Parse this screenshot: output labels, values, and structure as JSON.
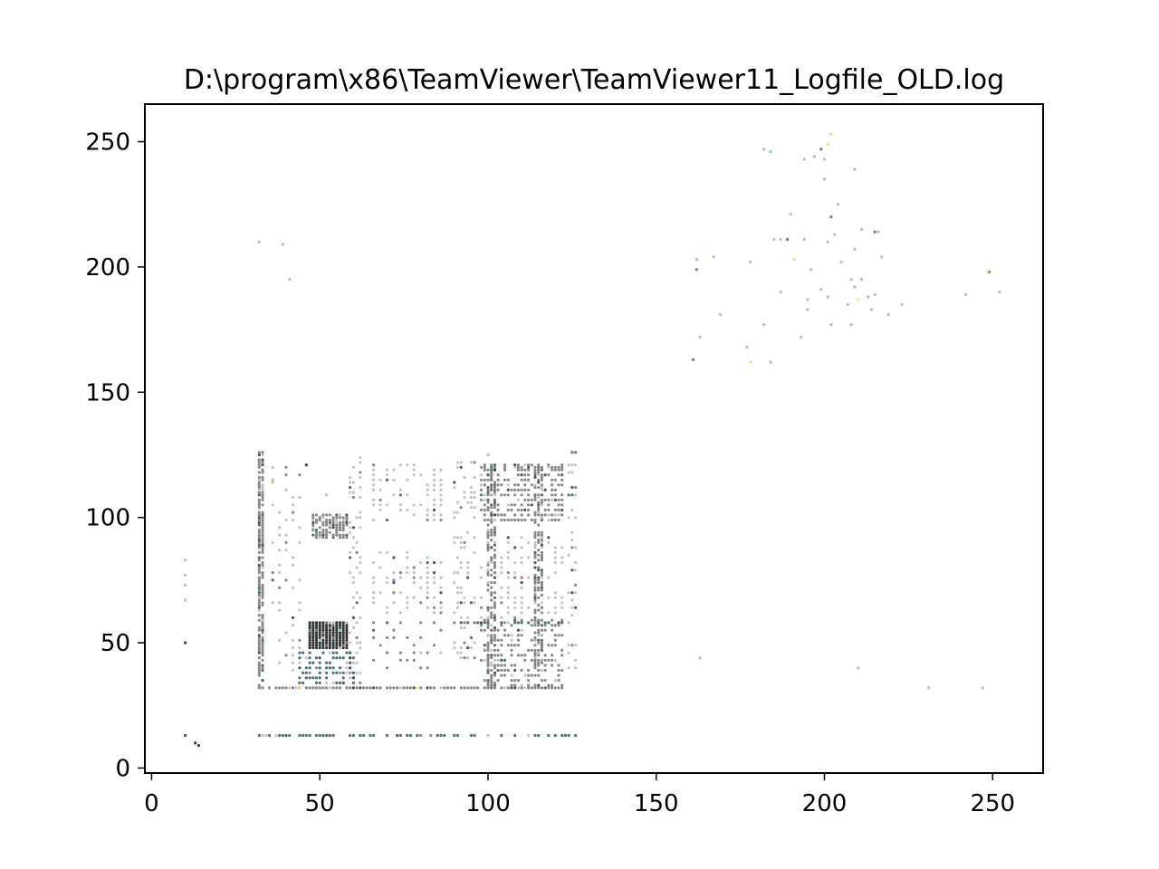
{
  "chart_data": {
    "type": "scatter",
    "title": "D:\\program\\x86\\TeamViewer\\TeamViewer11_Logfile_OLD.log",
    "xlabel": "",
    "ylabel": "",
    "xlim": [
      -2,
      265
    ],
    "ylim": [
      -2,
      265
    ],
    "xticks": [
      0,
      50,
      100,
      150,
      200,
      250
    ],
    "yticks": [
      0,
      50,
      100,
      150,
      200,
      250
    ],
    "grid": false,
    "legend": "none",
    "colors": {
      "dark": "#2b2b2b",
      "mid": "#6d6d6d",
      "light": "#b5b5b5",
      "teal": "#1f4f55",
      "accent_yellow": "#e8e26a",
      "accent_red": "#d9603c",
      "accent_blue": "#8fb7d8",
      "accent_purple": "#9a6aa8",
      "accent_green": "#a8c57a"
    },
    "clusters": [
      {
        "note": "dense block",
        "x": [
          47,
          58,
          1
        ],
        "y": [
          48,
          58,
          1
        ],
        "color": "dark",
        "density": 1.0
      },
      {
        "note": "row 32 low-left",
        "x": [
          32,
          122,
          1
        ],
        "y": [
          32,
          32,
          1
        ],
        "color": "mid",
        "density": 0.85
      },
      {
        "note": "row 13",
        "x": [
          32,
          126,
          1
        ],
        "y": [
          13,
          13,
          1
        ],
        "color": "teal",
        "density": 0.55
      },
      {
        "note": "col 32",
        "x": [
          32,
          33,
          1
        ],
        "y": [
          32,
          126,
          1
        ],
        "color": "mid",
        "density": 0.75
      },
      {
        "note": "block 48-56 x 92-101",
        "x": [
          48,
          58,
          1
        ],
        "y": [
          92,
          101,
          1
        ],
        "color": "mid",
        "density": 0.7
      },
      {
        "note": "block upper right 98-122",
        "x": [
          98,
          122,
          1
        ],
        "y": [
          99,
          121,
          2
        ],
        "color": "mid",
        "density": 0.6
      },
      {
        "note": "block 98-122 mid",
        "x": [
          98,
          122,
          2
        ],
        "y": [
          60,
          92,
          2
        ],
        "color": "light",
        "density": 0.45
      },
      {
        "note": "block 98-122 low",
        "x": [
          98,
          122,
          1
        ],
        "y": [
          33,
          60,
          2
        ],
        "color": "mid",
        "density": 0.45
      },
      {
        "note": "block 66-86 upper",
        "x": [
          66,
          86,
          2
        ],
        "y": [
          99,
          121,
          2
        ],
        "color": "light",
        "density": 0.5
      },
      {
        "note": "block 66-86 mid",
        "x": [
          66,
          86,
          2
        ],
        "y": [
          62,
          86,
          2
        ],
        "color": "light",
        "density": 0.45
      },
      {
        "note": "block 66-86 low",
        "x": [
          66,
          86,
          2
        ],
        "y": [
          40,
          60,
          3
        ],
        "color": "mid",
        "density": 0.3
      },
      {
        "note": "col 36-44",
        "x": [
          36,
          44,
          2
        ],
        "y": [
          36,
          120,
          3
        ],
        "color": "light",
        "density": 0.35
      },
      {
        "note": "col 59-62",
        "x": [
          59,
          62,
          1
        ],
        "y": [
          32,
          125,
          2
        ],
        "color": "light",
        "density": 0.35
      },
      {
        "note": "block 90-96",
        "x": [
          90,
          96,
          1
        ],
        "y": [
          44,
          122,
          2
        ],
        "color": "light",
        "density": 0.25
      },
      {
        "note": "rows 34-46 under block",
        "x": [
          44,
          60,
          1
        ],
        "y": [
          34,
          46,
          2
        ],
        "color": "teal",
        "density": 0.55
      },
      {
        "note": "row 58",
        "x": [
          92,
          122,
          1
        ],
        "y": [
          58,
          58,
          1
        ],
        "color": "teal",
        "density": 0.6
      },
      {
        "note": "row 120",
        "x": [
          98,
          122,
          1
        ],
        "y": [
          120,
          120,
          1
        ],
        "color": "mid",
        "density": 0.6
      },
      {
        "note": "col 114-116",
        "x": [
          114,
          116,
          1
        ],
        "y": [
          40,
          120,
          1
        ],
        "color": "mid",
        "density": 0.5
      },
      {
        "note": "col 100-102",
        "x": [
          100,
          102,
          1
        ],
        "y": [
          32,
          120,
          1
        ],
        "color": "mid",
        "density": 0.5
      },
      {
        "note": "col 124-126",
        "x": [
          124,
          126,
          1
        ],
        "y": [
          40,
          126,
          3
        ],
        "color": "light",
        "density": 0.4
      }
    ],
    "points": [
      {
        "x": 10,
        "y": 50,
        "c": "dark"
      },
      {
        "x": 10,
        "y": 13,
        "c": "teal"
      },
      {
        "x": 13,
        "y": 10,
        "c": "dark"
      },
      {
        "x": 14,
        "y": 9,
        "c": "dark"
      },
      {
        "x": 10,
        "y": 67,
        "c": "light"
      },
      {
        "x": 10,
        "y": 73,
        "c": "light"
      },
      {
        "x": 10,
        "y": 77,
        "c": "light"
      },
      {
        "x": 10,
        "y": 83,
        "c": "light"
      },
      {
        "x": 32,
        "y": 210,
        "c": "light"
      },
      {
        "x": 39,
        "y": 209,
        "c": "light"
      },
      {
        "x": 41,
        "y": 195,
        "c": "light"
      },
      {
        "x": 161,
        "y": 163,
        "c": "mid"
      },
      {
        "x": 162,
        "y": 199,
        "c": "accent_purple"
      },
      {
        "x": 162,
        "y": 203,
        "c": "accent_blue"
      },
      {
        "x": 163,
        "y": 172,
        "c": "light"
      },
      {
        "x": 163,
        "y": 44,
        "c": "light"
      },
      {
        "x": 167,
        "y": 204,
        "c": "light"
      },
      {
        "x": 169,
        "y": 181,
        "c": "light"
      },
      {
        "x": 177,
        "y": 168,
        "c": "light"
      },
      {
        "x": 178,
        "y": 162,
        "c": "accent_yellow"
      },
      {
        "x": 178,
        "y": 202,
        "c": "light"
      },
      {
        "x": 182,
        "y": 177,
        "c": "light"
      },
      {
        "x": 182,
        "y": 247,
        "c": "light"
      },
      {
        "x": 184,
        "y": 246,
        "c": "accent_blue"
      },
      {
        "x": 184,
        "y": 162,
        "c": "light"
      },
      {
        "x": 185,
        "y": 211,
        "c": "light"
      },
      {
        "x": 187,
        "y": 190,
        "c": "light"
      },
      {
        "x": 187,
        "y": 211,
        "c": "light"
      },
      {
        "x": 189,
        "y": 211,
        "c": "mid"
      },
      {
        "x": 190,
        "y": 221,
        "c": "light"
      },
      {
        "x": 191,
        "y": 203,
        "c": "accent_yellow"
      },
      {
        "x": 193,
        "y": 172,
        "c": "light"
      },
      {
        "x": 194,
        "y": 243,
        "c": "light"
      },
      {
        "x": 194,
        "y": 211,
        "c": "light"
      },
      {
        "x": 195,
        "y": 187,
        "c": "light"
      },
      {
        "x": 195,
        "y": 183,
        "c": "light"
      },
      {
        "x": 196,
        "y": 199,
        "c": "light"
      },
      {
        "x": 197,
        "y": 244,
        "c": "light"
      },
      {
        "x": 199,
        "y": 247,
        "c": "mid"
      },
      {
        "x": 199,
        "y": 191,
        "c": "light"
      },
      {
        "x": 200,
        "y": 243,
        "c": "light"
      },
      {
        "x": 200,
        "y": 235,
        "c": "light"
      },
      {
        "x": 201,
        "y": 249,
        "c": "accent_yellow"
      },
      {
        "x": 201,
        "y": 210,
        "c": "light"
      },
      {
        "x": 201,
        "y": 188,
        "c": "light"
      },
      {
        "x": 202,
        "y": 253,
        "c": "accent_yellow"
      },
      {
        "x": 202,
        "y": 220,
        "c": "mid"
      },
      {
        "x": 202,
        "y": 177,
        "c": "accent_blue"
      },
      {
        "x": 203,
        "y": 213,
        "c": "light"
      },
      {
        "x": 204,
        "y": 225,
        "c": "light"
      },
      {
        "x": 205,
        "y": 202,
        "c": "light"
      },
      {
        "x": 207,
        "y": 185,
        "c": "light"
      },
      {
        "x": 208,
        "y": 195,
        "c": "light"
      },
      {
        "x": 208,
        "y": 177,
        "c": "light"
      },
      {
        "x": 209,
        "y": 239,
        "c": "light"
      },
      {
        "x": 209,
        "y": 207,
        "c": "light"
      },
      {
        "x": 209,
        "y": 192,
        "c": "light"
      },
      {
        "x": 210,
        "y": 187,
        "c": "accent_yellow"
      },
      {
        "x": 210,
        "y": 40,
        "c": "light"
      },
      {
        "x": 211,
        "y": 215,
        "c": "light"
      },
      {
        "x": 211,
        "y": 195,
        "c": "light"
      },
      {
        "x": 213,
        "y": 188,
        "c": "light"
      },
      {
        "x": 214,
        "y": 183,
        "c": "light"
      },
      {
        "x": 215,
        "y": 214,
        "c": "mid"
      },
      {
        "x": 215,
        "y": 189,
        "c": "light"
      },
      {
        "x": 216,
        "y": 214,
        "c": "light"
      },
      {
        "x": 217,
        "y": 204,
        "c": "light"
      },
      {
        "x": 219,
        "y": 181,
        "c": "light"
      },
      {
        "x": 223,
        "y": 185,
        "c": "light"
      },
      {
        "x": 231,
        "y": 32,
        "c": "light"
      },
      {
        "x": 242,
        "y": 189,
        "c": "light"
      },
      {
        "x": 247,
        "y": 32,
        "c": "light"
      },
      {
        "x": 249,
        "y": 198,
        "c": "accent_red"
      },
      {
        "x": 252,
        "y": 190,
        "c": "light"
      },
      {
        "x": 100,
        "y": 125,
        "c": "light"
      },
      {
        "x": 125,
        "y": 126,
        "c": "mid"
      },
      {
        "x": 126,
        "y": 126,
        "c": "mid"
      },
      {
        "x": 36,
        "y": 115,
        "c": "accent_green"
      },
      {
        "x": 46,
        "y": 121,
        "c": "dark"
      },
      {
        "x": 52,
        "y": 109,
        "c": "light"
      },
      {
        "x": 44,
        "y": 32,
        "c": "accent_yellow"
      },
      {
        "x": 79,
        "y": 32,
        "c": "accent_yellow"
      },
      {
        "x": 72,
        "y": 75,
        "c": "accent_purple"
      },
      {
        "x": 110,
        "y": 76,
        "c": "accent_purple"
      }
    ]
  }
}
